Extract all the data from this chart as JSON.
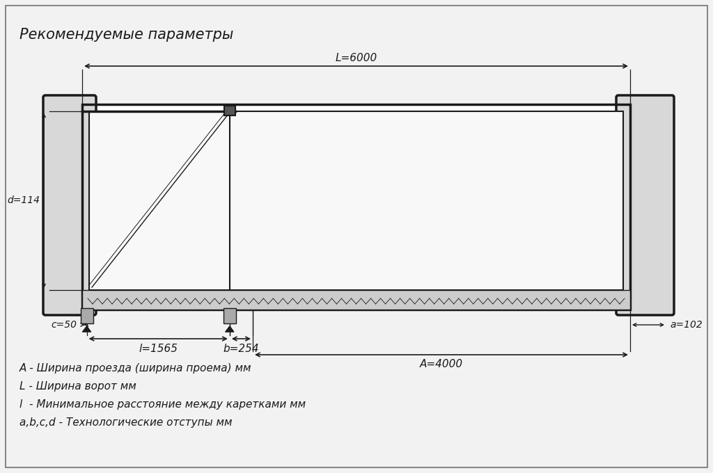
{
  "title": "Рекомендуемые параметры",
  "bg_color": "#f2f2f2",
  "line_color": "#1a1a1a",
  "dim_color": "#1a1a1a",
  "font_color": "#1a1a1a",
  "legend_lines": [
    "А - Ширина проезда (ширина проема) мм",
    "L - Ширина ворот мм",
    "l  - Минимальное расстояние между каретками мм",
    "a,b,c,d - Технологические отступы мм"
  ],
  "dims": {
    "L": "L=6000",
    "A": "A=4000",
    "l": "l=1565",
    "b": "b=254",
    "a": "a=102",
    "c": "c=50",
    "d": "d=114"
  }
}
